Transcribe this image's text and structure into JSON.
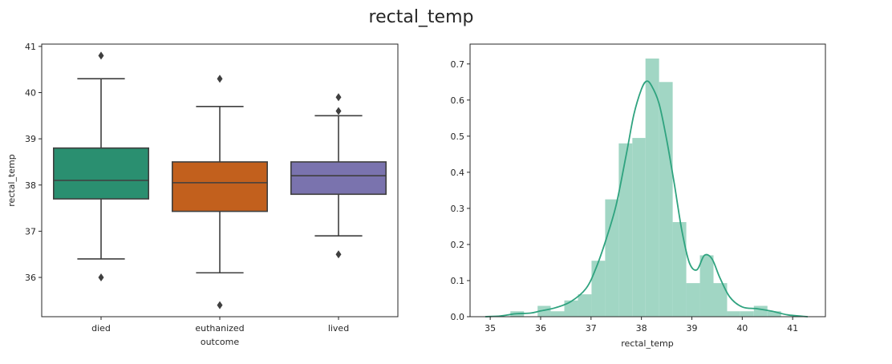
{
  "figure": {
    "title": "rectal_temp"
  },
  "chart_data": [
    {
      "type": "box",
      "xlabel": "outcome",
      "ylabel": "rectal_temp",
      "ylim": [
        35.15,
        41.05
      ],
      "yticks": [
        36,
        37,
        38,
        39,
        40,
        41
      ],
      "grid": false,
      "categories": [
        "died",
        "euthanized",
        "lived"
      ],
      "boxes": [
        {
          "category": "died",
          "color": "#2a8f70",
          "whisker_low": 36.4,
          "q1": 37.7,
          "median": 38.1,
          "q3": 38.8,
          "whisker_high": 40.3,
          "outliers": [
            36.0,
            40.8
          ]
        },
        {
          "category": "euthanized",
          "color": "#c2601d",
          "whisker_low": 36.1,
          "q1": 37.43,
          "median": 38.05,
          "q3": 38.5,
          "whisker_high": 39.7,
          "outliers": [
            35.4,
            40.3
          ]
        },
        {
          "category": "lived",
          "color": "#7a73ae",
          "whisker_low": 36.9,
          "q1": 37.8,
          "median": 38.2,
          "q3": 38.5,
          "whisker_high": 39.5,
          "outliers": [
            36.5,
            39.6,
            39.9
          ]
        }
      ]
    },
    {
      "type": "histogram",
      "xlabel": "rectal_temp",
      "ylabel": "",
      "xlim": [
        34.6,
        41.65
      ],
      "ylim": [
        0,
        0.755
      ],
      "xticks": [
        35,
        36,
        37,
        38,
        39,
        40,
        41
      ],
      "yticks": [
        0.0,
        0.1,
        0.2,
        0.3,
        0.4,
        0.5,
        0.6,
        0.7
      ],
      "ytick_labels": [
        "0.0",
        "0.1",
        "0.2",
        "0.3",
        "0.4",
        "0.5",
        "0.6",
        "0.7"
      ],
      "grid": false,
      "bar_color": "#a1d6c4",
      "kde_color": "#2fa37f",
      "bins": [
        {
          "x0": 35.4,
          "x1": 35.67,
          "value": 0.015
        },
        {
          "x0": 35.67,
          "x1": 35.94,
          "value": 0.0
        },
        {
          "x0": 35.94,
          "x1": 36.2,
          "value": 0.03
        },
        {
          "x0": 36.2,
          "x1": 36.47,
          "value": 0.015
        },
        {
          "x0": 36.47,
          "x1": 36.74,
          "value": 0.045
        },
        {
          "x0": 36.74,
          "x1": 37.01,
          "value": 0.062
        },
        {
          "x0": 37.01,
          "x1": 37.28,
          "value": 0.155
        },
        {
          "x0": 37.28,
          "x1": 37.55,
          "value": 0.325
        },
        {
          "x0": 37.55,
          "x1": 37.82,
          "value": 0.48
        },
        {
          "x0": 37.82,
          "x1": 38.08,
          "value": 0.495
        },
        {
          "x0": 38.08,
          "x1": 38.35,
          "value": 0.715
        },
        {
          "x0": 38.35,
          "x1": 38.62,
          "value": 0.65
        },
        {
          "x0": 38.62,
          "x1": 38.89,
          "value": 0.262
        },
        {
          "x0": 38.89,
          "x1": 39.16,
          "value": 0.093
        },
        {
          "x0": 39.16,
          "x1": 39.43,
          "value": 0.17
        },
        {
          "x0": 39.43,
          "x1": 39.7,
          "value": 0.093
        },
        {
          "x0": 39.7,
          "x1": 39.96,
          "value": 0.015
        },
        {
          "x0": 39.96,
          "x1": 40.23,
          "value": 0.015
        },
        {
          "x0": 40.23,
          "x1": 40.5,
          "value": 0.03
        },
        {
          "x0": 40.5,
          "x1": 40.77,
          "value": 0.015
        }
      ],
      "kde": {
        "x": [
          34.9,
          35.2,
          35.5,
          35.8,
          36.0,
          36.3,
          36.6,
          36.9,
          37.1,
          37.3,
          37.5,
          37.7,
          37.85,
          38.0,
          38.1,
          38.2,
          38.35,
          38.5,
          38.65,
          38.8,
          38.95,
          39.1,
          39.25,
          39.4,
          39.55,
          39.75,
          40.0,
          40.3,
          40.6,
          40.9,
          41.3
        ],
        "y": [
          0.0,
          0.002,
          0.008,
          0.01,
          0.016,
          0.025,
          0.042,
          0.078,
          0.135,
          0.215,
          0.31,
          0.45,
          0.56,
          0.63,
          0.652,
          0.64,
          0.59,
          0.49,
          0.37,
          0.24,
          0.15,
          0.13,
          0.17,
          0.16,
          0.11,
          0.055,
          0.027,
          0.022,
          0.015,
          0.005,
          0.0
        ]
      }
    }
  ]
}
